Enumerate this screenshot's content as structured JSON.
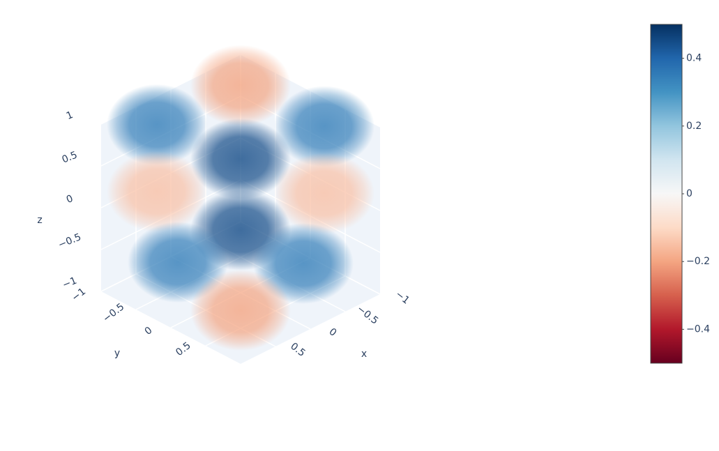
{
  "chart_data": {
    "type": "volume",
    "xaxis_title": "x",
    "yaxis_title": "y",
    "zaxis_title": "z",
    "xlim": [
      -1,
      1
    ],
    "ylim": [
      -1,
      1
    ],
    "zlim": [
      -1,
      1
    ],
    "xticks": [
      {
        "value": -1,
        "label": "−1"
      },
      {
        "value": -0.5,
        "label": "−0.5"
      },
      0,
      0.5
    ],
    "yticks": [
      {
        "value": -1,
        "label": "−1"
      },
      {
        "value": -0.5,
        "label": "−0.5"
      },
      0,
      0.5
    ],
    "zticks": [
      {
        "value": -1,
        "label": "−1"
      },
      {
        "value": -0.5,
        "label": "−0.5"
      },
      0,
      0.5,
      1
    ],
    "grid": true,
    "colorscale": [
      "#67001f",
      "#b2182b",
      "#d6604d",
      "#f4a582",
      "#fddbc7",
      "#f7f7f7",
      "#d1e5f0",
      "#92c5de",
      "#4393c3",
      "#2166ac",
      "#053061"
    ],
    "clim": [
      -0.5,
      0.5
    ],
    "cticks": [
      {
        "value": -0.4,
        "label": "−0.4"
      },
      {
        "value": -0.2,
        "label": "−0.2"
      },
      0,
      0.2,
      0.4
    ],
    "blobs": {
      "x": [
        -0.8,
        0.6,
        -0.6,
        0,
        0.6,
        -0.6,
        0,
        0.5,
        -0.4,
        0.6
      ],
      "y": [
        -0.8,
        -0.6,
        0.6,
        0,
        -0.6,
        0.6,
        0,
        -0.4,
        0.5,
        0.6
      ],
      "z": [
        0.8,
        1,
        1,
        0.6,
        0.2,
        0.2,
        -0.25,
        -0.6,
        -0.6,
        -0.7
      ],
      "values": [
        -0.2,
        0.35,
        0.35,
        0.45,
        -0.15,
        -0.15,
        0.45,
        0.35,
        0.35,
        -0.2
      ]
    }
  }
}
